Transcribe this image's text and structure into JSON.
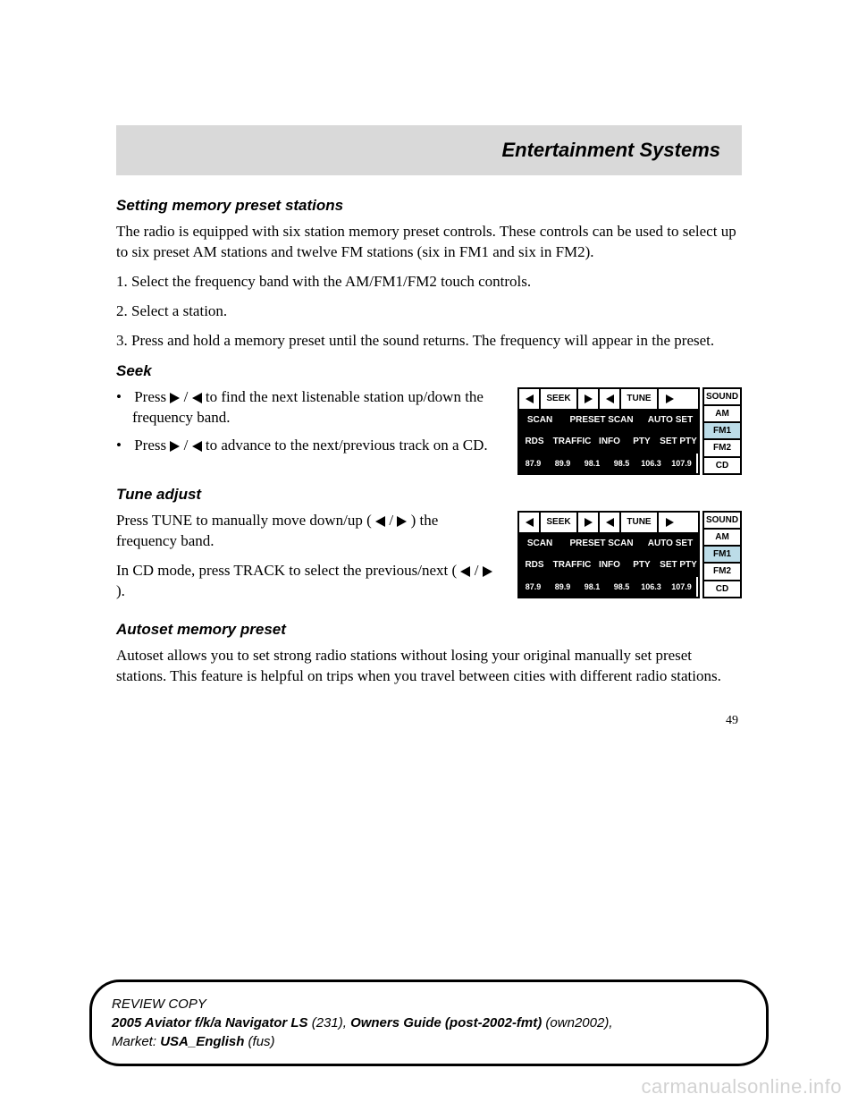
{
  "header": {
    "title": "Entertainment Systems"
  },
  "sections": {
    "memory": {
      "heading": "Setting memory preset stations",
      "p1": "The radio is equipped with six station memory preset controls. These controls can be used to select up to six preset AM stations and twelve FM stations (six in FM1 and six in FM2).",
      "step1": "1. Select the frequency band with the AM/FM1/FM2 touch controls.",
      "step2": "2. Select a station.",
      "step3": "3. Press and hold a memory preset until the sound returns. The frequency will appear in the preset."
    },
    "seek": {
      "heading": "Seek",
      "b1a": "Press ",
      "b1b": " to find the next listenable station up/down the frequency band.",
      "b2a": "Press ",
      "b2b": " to advance to the next/previous track on a CD."
    },
    "tune": {
      "heading": "Tune adjust",
      "p1a": "Press TUNE to manually move down/up (",
      "p1b": ") the frequency band.",
      "p2a": "In CD mode, press TRACK to select the previous/next (",
      "p2b": ")."
    },
    "autoset": {
      "heading": "Autoset memory preset",
      "p1": "Autoset allows you to set strong radio stations without losing your original manually set preset stations. This feature is helpful on trips when you travel between cities with different radio stations."
    }
  },
  "radio_panel": {
    "row1": {
      "seek": "SEEK",
      "tune": "TUNE"
    },
    "row2": {
      "scan": "SCAN",
      "preset_scan": "PRESET SCAN",
      "auto_set": "AUTO SET"
    },
    "row3": {
      "rds": "RDS",
      "traffic": "TRAFFIC",
      "info": "INFO",
      "pty": "PTY",
      "set_pty": "SET PTY"
    },
    "row4": [
      "87.9",
      "89.9",
      "98.1",
      "98.5",
      "106.3",
      "107.9"
    ],
    "side": [
      "SOUND",
      "AM",
      "FM1",
      "FM2",
      "CD"
    ],
    "active_side_index": 2,
    "colors": {
      "active_bg": "#bcdce8",
      "border": "#000000",
      "dark_bg": "#000000",
      "dark_fg": "#ffffff"
    },
    "cell_widths": {
      "arrow": 24,
      "seek_label": 42,
      "tune_label": 42,
      "scan": 48,
      "preset_scan": 90,
      "auto_set": 62,
      "rds": 36,
      "traffic": 48,
      "info": 36,
      "pty": 36,
      "set_pty": 44,
      "freq": 33
    }
  },
  "page_number": "49",
  "footer": {
    "line1": "REVIEW COPY",
    "line2_a": "2005 Aviator f/k/a Navigator LS",
    "line2_b": " (231)",
    "line2_c": ", ",
    "line2_d": "Owners Guide (post-2002-fmt)",
    "line2_e": " (own2002)",
    "line2_f": ",",
    "line3_a": "Market: ",
    "line3_b": "USA_English",
    "line3_c": " (fus)"
  },
  "watermark": "carmanualsonline.info"
}
